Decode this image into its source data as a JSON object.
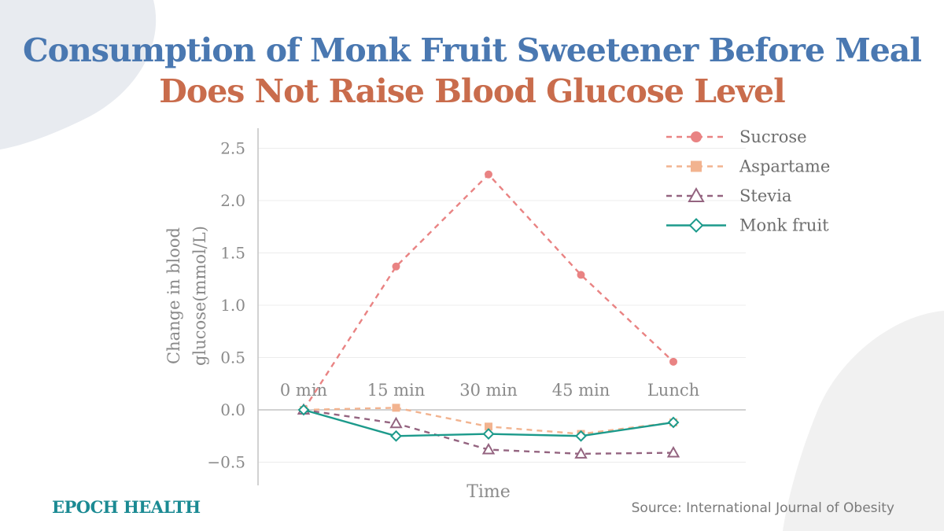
{
  "colors": {
    "title_primary": "#4a78b1",
    "title_secondary": "#c96c4c",
    "axis_text": "#8a8a8a",
    "brand": "#1b8a93",
    "background_shape": "#e8ebf0"
  },
  "header": {
    "title_line_1": "Consumption of Monk Fruit Sweetener Before Meal",
    "title_line_2": "Does Not Raise Blood Glucose Level"
  },
  "footer": {
    "brand": "EPOCH HEALTH",
    "source": "Source: International Journal of Obesity"
  },
  "chart_data": {
    "type": "line",
    "xlabel": "Time",
    "ylabel_lines": [
      "Change in blood",
      "glucose(mmol/L)"
    ],
    "categories": [
      "0 min",
      "15 min",
      "30 min",
      "45 min",
      "Lunch"
    ],
    "ylim": [
      -0.75,
      2.75
    ],
    "yticks": [
      -0.5,
      0.0,
      0.5,
      1.0,
      1.5,
      2.0,
      2.5
    ],
    "ytick_labels": [
      "−0.5",
      "0.0",
      "0.5",
      "1.0",
      "1.5",
      "2.0",
      "2.5"
    ],
    "grid": true,
    "legend_position": "top-right",
    "series": [
      {
        "name": "Sucrose",
        "values": [
          0.0,
          1.37,
          2.25,
          1.29,
          0.46
        ],
        "color": "#e98383",
        "line": "dashed",
        "marker": "circle"
      },
      {
        "name": "Aspartame",
        "values": [
          0.0,
          0.02,
          -0.16,
          -0.23,
          -0.12
        ],
        "color": "#f2b38f",
        "line": "dashed",
        "marker": "square"
      },
      {
        "name": "Stevia",
        "values": [
          0.0,
          -0.13,
          -0.38,
          -0.42,
          -0.41
        ],
        "color": "#946480",
        "line": "dashed",
        "marker": "triangle"
      },
      {
        "name": "Monk fruit",
        "values": [
          0.0,
          -0.25,
          -0.23,
          -0.25,
          -0.12
        ],
        "color": "#1c9a8b",
        "line": "solid",
        "marker": "diamond"
      }
    ]
  }
}
